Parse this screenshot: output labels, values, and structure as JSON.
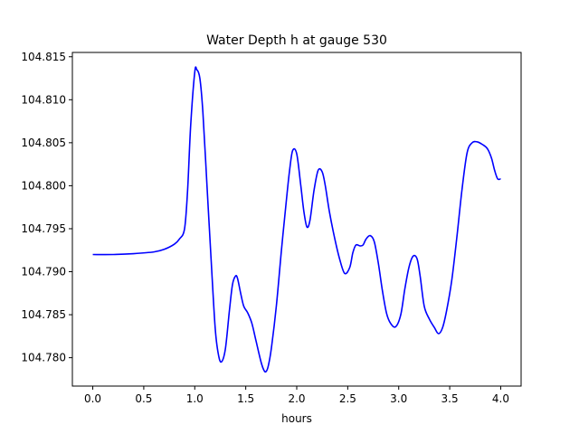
{
  "chart_data": {
    "type": "line",
    "title": "Water Depth h at gauge 530",
    "xlabel": "hours",
    "ylabel": "",
    "xlim": [
      -0.2,
      4.2
    ],
    "ylim": [
      104.7767,
      104.8155
    ],
    "grid": false,
    "line_color": "#0000ff",
    "x_ticks": [
      {
        "value": 0.0,
        "label": "0.0"
      },
      {
        "value": 0.5,
        "label": "0.5"
      },
      {
        "value": 1.0,
        "label": "1.0"
      },
      {
        "value": 1.5,
        "label": "1.5"
      },
      {
        "value": 2.0,
        "label": "2.0"
      },
      {
        "value": 2.5,
        "label": "2.5"
      },
      {
        "value": 3.0,
        "label": "3.0"
      },
      {
        "value": 3.5,
        "label": "3.5"
      },
      {
        "value": 4.0,
        "label": "4.0"
      }
    ],
    "y_ticks": [
      {
        "value": 104.78,
        "label": "104.780"
      },
      {
        "value": 104.785,
        "label": "104.785"
      },
      {
        "value": 104.79,
        "label": "104.790"
      },
      {
        "value": 104.795,
        "label": "104.795"
      },
      {
        "value": 104.8,
        "label": "104.800"
      },
      {
        "value": 104.805,
        "label": "104.805"
      },
      {
        "value": 104.81,
        "label": "104.810"
      },
      {
        "value": 104.815,
        "label": "104.815"
      }
    ],
    "series": [
      {
        "x": [
          0.0,
          0.2,
          0.4,
          0.6,
          0.7,
          0.8,
          0.85,
          0.9,
          0.93,
          0.96,
          1.0,
          1.02,
          1.05,
          1.08,
          1.12,
          1.16,
          1.2,
          1.23,
          1.26,
          1.3,
          1.34,
          1.37,
          1.4,
          1.42,
          1.45,
          1.48,
          1.52,
          1.56,
          1.6,
          1.65,
          1.68,
          1.7,
          1.72,
          1.75,
          1.8,
          1.85,
          1.9,
          1.93,
          1.96,
          2.0,
          2.04,
          2.07,
          2.1,
          2.13,
          2.17,
          2.21,
          2.25,
          2.28,
          2.32,
          2.37,
          2.42,
          2.47,
          2.52,
          2.55,
          2.58,
          2.62,
          2.65,
          2.68,
          2.72,
          2.76,
          2.8,
          2.84,
          2.88,
          2.92,
          2.97,
          3.02,
          3.06,
          3.1,
          3.14,
          3.18,
          3.21,
          3.25,
          3.3,
          3.35,
          3.39,
          3.43,
          3.47,
          3.52,
          3.57,
          3.62,
          3.67,
          3.72,
          3.77,
          3.82,
          3.87,
          3.91,
          3.94,
          3.97,
          4.0
        ],
        "y": [
          104.792,
          104.792,
          104.7921,
          104.7923,
          104.7926,
          104.7932,
          104.7938,
          104.795,
          104.7995,
          104.807,
          104.8132,
          104.8135,
          104.8125,
          104.8085,
          104.8,
          104.7915,
          104.7835,
          104.7805,
          104.7795,
          104.781,
          104.7855,
          104.7885,
          104.7895,
          104.7892,
          104.7875,
          104.786,
          104.7852,
          104.784,
          104.782,
          104.7795,
          104.7785,
          104.7784,
          104.779,
          104.781,
          104.786,
          104.7925,
          104.7985,
          104.8018,
          104.8041,
          104.8037,
          104.8,
          104.797,
          104.7952,
          104.796,
          104.7995,
          104.8018,
          104.8016,
          104.8,
          104.797,
          104.794,
          104.7915,
          104.7898,
          104.7905,
          104.7922,
          104.7931,
          104.793,
          104.7931,
          104.7938,
          104.7942,
          104.7935,
          104.791,
          104.7878,
          104.7852,
          104.784,
          104.7836,
          104.785,
          104.788,
          104.7905,
          104.7918,
          104.7915,
          104.7895,
          104.786,
          104.7845,
          104.7835,
          104.7828,
          104.7835,
          104.7855,
          104.789,
          104.794,
          104.7995,
          104.8038,
          104.805,
          104.8051,
          104.8048,
          104.8043,
          104.8032,
          104.8018,
          104.8008,
          104.8008
        ]
      }
    ]
  }
}
